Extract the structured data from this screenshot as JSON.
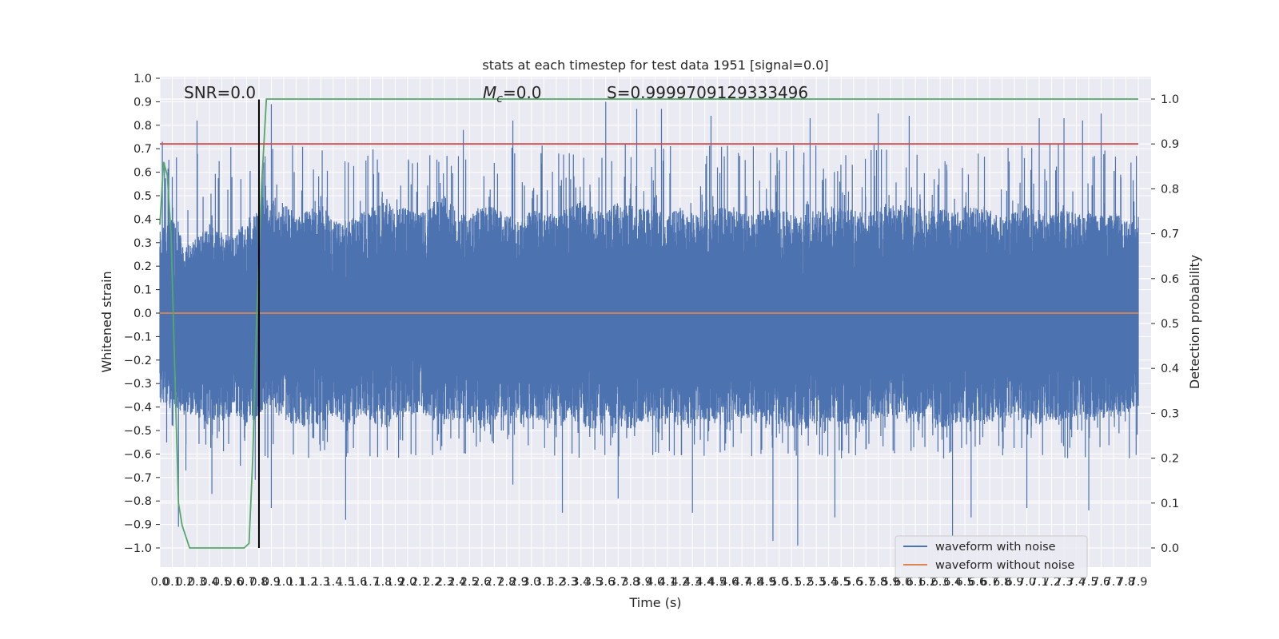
{
  "chart_data": {
    "type": "line",
    "title": "stats at each timestep for test data 1951 [signal=0.0]",
    "xlabel": "Time (s)",
    "ylabel": "Whitened strain",
    "y2label": "Detection probability",
    "xlim": [
      0.0,
      7.9
    ],
    "ylim": [
      -1.0,
      1.0
    ],
    "y2lim": [
      0.0,
      1.0
    ],
    "x_ticks": [
      "0.0",
      "0.1",
      "0.2",
      "0.3",
      "0.4",
      "0.5",
      "0.6",
      "0.7",
      "0.8",
      "0.9",
      "1.0",
      "1.1",
      "1.2",
      "1.3",
      "1.4",
      "1.5",
      "1.6",
      "1.7",
      "1.8",
      "1.9",
      "2.0",
      "2.1",
      "2.2",
      "2.3",
      "2.4",
      "2.5",
      "2.6",
      "2.7",
      "2.8",
      "2.9",
      "3.0",
      "3.1",
      "3.2",
      "3.3",
      "3.4",
      "3.5",
      "3.6",
      "3.7",
      "3.8",
      "3.9",
      "4.0",
      "4.1",
      "4.2",
      "4.3",
      "4.4",
      "4.5",
      "4.6",
      "4.7",
      "4.8",
      "4.9",
      "5.0",
      "5.1",
      "5.2",
      "5.3",
      "5.4",
      "5.5",
      "5.6",
      "5.7",
      "5.8",
      "5.9",
      "6.0",
      "6.1",
      "6.2",
      "6.3",
      "6.4",
      "6.5",
      "6.6",
      "6.7",
      "6.8",
      "6.9",
      "7.0",
      "7.1",
      "7.2",
      "7.3",
      "7.4",
      "7.5",
      "7.6",
      "7.7",
      "7.8",
      "7.9"
    ],
    "y_ticks": [
      "1.0",
      "0.9",
      "0.8",
      "0.7",
      "0.6",
      "0.5",
      "0.4",
      "0.3",
      "0.2",
      "0.1",
      "0.0",
      "−0.1",
      "−0.2",
      "−0.3",
      "−0.4",
      "−0.5",
      "−0.6",
      "−0.7",
      "−0.8",
      "−0.9",
      "−1.0"
    ],
    "y2_ticks": [
      "1.0",
      "0.9",
      "0.8",
      "0.7",
      "0.6",
      "0.5",
      "0.4",
      "0.3",
      "0.2",
      "0.1",
      "0.0"
    ],
    "series": [
      {
        "name": "waveform with noise",
        "color": "#4c72b0",
        "axis": "left",
        "kind": "noise",
        "envelope_upper": [
          0.35,
          0.4,
          0.3,
          0.32,
          0.38,
          0.35,
          0.33,
          0.4,
          0.45,
          0.5,
          0.48,
          0.42,
          0.45,
          0.47,
          0.4,
          0.38,
          0.42,
          0.45,
          0.5,
          0.44,
          0.45,
          0.42,
          0.48,
          0.5,
          0.44,
          0.42,
          0.46,
          0.45,
          0.42,
          0.4,
          0.44,
          0.45,
          0.42,
          0.46,
          0.48,
          0.45,
          0.44,
          0.47,
          0.46,
          0.45,
          0.44,
          0.42,
          0.45,
          0.43,
          0.44,
          0.45,
          0.46,
          0.44,
          0.42,
          0.45,
          0.44,
          0.43,
          0.42,
          0.44,
          0.46,
          0.45,
          0.44,
          0.43,
          0.45,
          0.46,
          0.47,
          0.45,
          0.44,
          0.45,
          0.43,
          0.46,
          0.45,
          0.44,
          0.42,
          0.45,
          0.46,
          0.44,
          0.42,
          0.45,
          0.43,
          0.44,
          0.42,
          0.43,
          0.4,
          0.42
        ],
        "envelope_lower": [
          -0.38,
          -0.4,
          -0.42,
          -0.45,
          -0.48,
          -0.46,
          -0.44,
          -0.47,
          -0.45,
          -0.4,
          -0.46,
          -0.48,
          -0.5,
          -0.47,
          -0.45,
          -0.48,
          -0.44,
          -0.46,
          -0.5,
          -0.47,
          -0.44,
          -0.42,
          -0.46,
          -0.48,
          -0.45,
          -0.47,
          -0.5,
          -0.46,
          -0.44,
          -0.47,
          -0.45,
          -0.46,
          -0.48,
          -0.45,
          -0.47,
          -0.5,
          -0.46,
          -0.48,
          -0.5,
          -0.47,
          -0.46,
          -0.45,
          -0.48,
          -0.47,
          -0.46,
          -0.48,
          -0.47,
          -0.45,
          -0.46,
          -0.48,
          -0.47,
          -0.49,
          -0.5,
          -0.47,
          -0.46,
          -0.48,
          -0.47,
          -0.48,
          -0.46,
          -0.45,
          -0.47,
          -0.48,
          -0.46,
          -0.5,
          -0.47,
          -0.48,
          -0.46,
          -0.47,
          -0.45,
          -0.46,
          -0.47,
          -0.48,
          -0.46,
          -0.45,
          -0.44,
          -0.46,
          -0.45,
          -0.44,
          -0.42,
          -0.4
        ],
        "peaks_high": [
          [
            0.02,
            0.73
          ],
          [
            0.1,
            0.58
          ],
          [
            0.3,
            0.82
          ],
          [
            0.9,
            0.89
          ],
          [
            2.45,
            0.78
          ],
          [
            2.85,
            0.82
          ],
          [
            3.6,
            0.9
          ],
          [
            3.85,
            0.87
          ],
          [
            4.05,
            0.87
          ],
          [
            4.45,
            0.84
          ],
          [
            5.25,
            0.83
          ],
          [
            5.8,
            0.85
          ],
          [
            6.05,
            0.84
          ],
          [
            7.1,
            0.83
          ],
          [
            7.3,
            0.83
          ],
          [
            7.45,
            0.82
          ],
          [
            7.6,
            0.85
          ]
        ],
        "peaks_low": [
          [
            0.15,
            -0.91
          ],
          [
            0.21,
            -0.67
          ],
          [
            0.42,
            -0.77
          ],
          [
            0.65,
            -0.65
          ],
          [
            0.77,
            -0.71
          ],
          [
            0.9,
            -0.83
          ],
          [
            1.5,
            -0.88
          ],
          [
            2.85,
            -0.73
          ],
          [
            3.25,
            -0.85
          ],
          [
            3.7,
            -0.79
          ],
          [
            4.3,
            -0.85
          ],
          [
            4.95,
            -0.97
          ],
          [
            5.15,
            -0.99
          ],
          [
            5.45,
            -0.87
          ],
          [
            6.4,
            -0.95
          ],
          [
            6.55,
            -0.87
          ],
          [
            7.0,
            -0.83
          ],
          [
            7.5,
            -0.84
          ]
        ]
      },
      {
        "name": "waveform without noise",
        "color": "#dd8452",
        "axis": "left",
        "x": [
          0.0,
          7.9
        ],
        "y": [
          0.0,
          0.0
        ]
      },
      {
        "color": "#55a868",
        "axis": "right",
        "x": [
          0.0,
          0.03,
          0.06,
          0.09,
          0.12,
          0.15,
          0.18,
          0.24,
          0.5,
          0.68,
          0.72,
          0.75,
          0.78,
          0.82,
          0.86,
          7.9
        ],
        "y": [
          0.72,
          0.86,
          0.83,
          0.7,
          0.4,
          0.1,
          0.05,
          0.0,
          0.0,
          0.0,
          0.01,
          0.2,
          0.5,
          0.8,
          1.0,
          1.0
        ]
      },
      {
        "color": "#c44e52",
        "axis": "right",
        "x": [
          0.0,
          7.9
        ],
        "y": [
          0.9,
          0.9
        ]
      },
      {
        "color": "#000000",
        "axis": "left",
        "kind": "vline",
        "x": [
          0.8,
          0.8
        ],
        "y": [
          -1.0,
          0.91
        ]
      }
    ],
    "annotations": {
      "snr": "SNR=0.0",
      "mc_symbol": "M",
      "mc_sub": "c",
      "mc_value": "=0.0",
      "s": "S=0.9999709129333496"
    },
    "legend": {
      "placement": "lower-right",
      "entries": [
        "waveform with noise",
        "waveform without noise"
      ]
    },
    "grid": true,
    "background": "#eaeaf2"
  }
}
